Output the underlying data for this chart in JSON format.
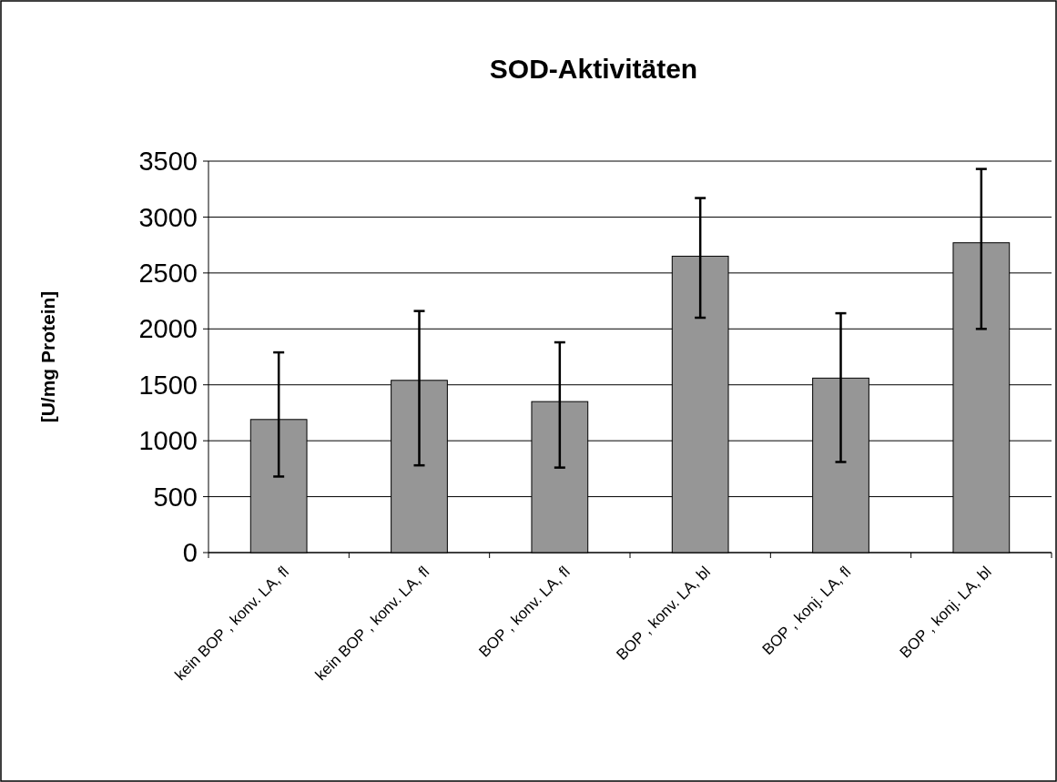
{
  "chart_data": {
    "type": "bar",
    "title": "SOD-Aktivitäten",
    "ylabel": "[U/mg Protein]",
    "categories": [
      "kein BOP , konv. LA, fl",
      "kein BOP , konv. LA, fl",
      "BOP , konv. LA, fl",
      "BOP , konv. LA, bl",
      "BOP , konj. LA, fl",
      "BOP , konj. LA, bl"
    ],
    "values": [
      1190,
      1540,
      1350,
      2650,
      1560,
      2770
    ],
    "errors": [
      [
        680,
        1790
      ],
      [
        780,
        2160
      ],
      [
        760,
        1880
      ],
      [
        2100,
        3170
      ],
      [
        810,
        2140
      ],
      [
        2000,
        3430
      ]
    ],
    "color": "#969696",
    "ylim": [
      0,
      3500
    ],
    "yticks": [
      0,
      500,
      1000,
      1500,
      2000,
      2500,
      3000,
      3500
    ],
    "grid": "y"
  }
}
